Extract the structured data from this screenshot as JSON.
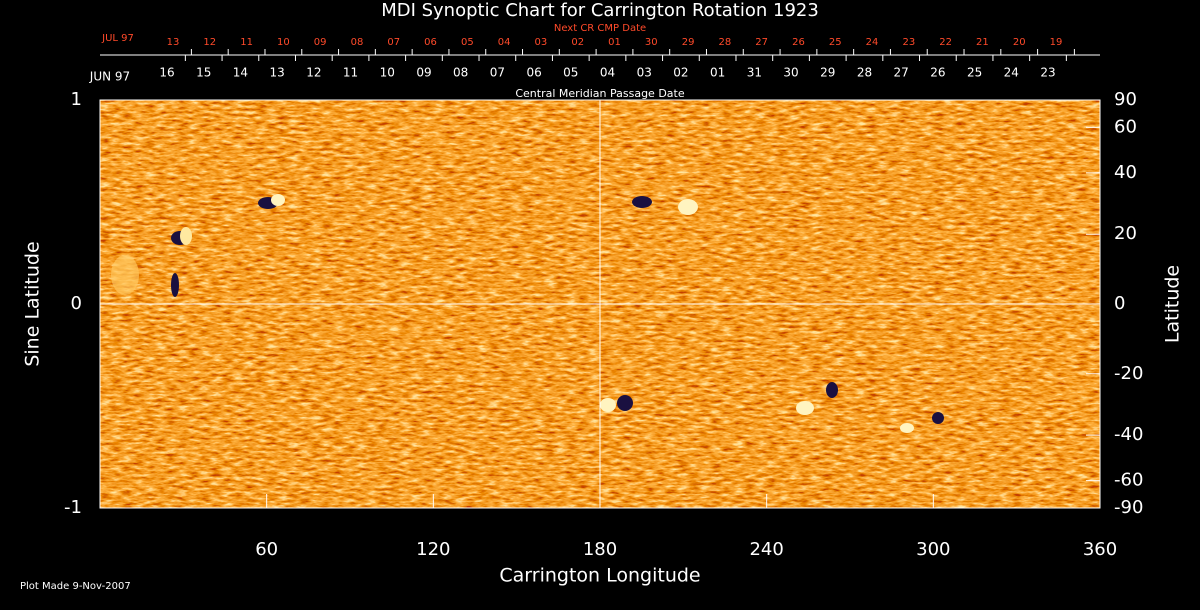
{
  "chart_data": {
    "type": "synoptic-map",
    "title": "MDI Synoptic Chart for Carrington Rotation 1923",
    "xlabel": "Carrington Longitude",
    "ylabel": "Sine Latitude",
    "y2label": "Latitude",
    "xlim": [
      0,
      360
    ],
    "xticks": [
      60,
      120,
      180,
      240,
      300,
      360
    ],
    "ylim": [
      -1,
      1
    ],
    "yticks": [
      -1,
      0,
      1
    ],
    "y2lim": [
      -90,
      90
    ],
    "y2scale": "sine",
    "y2ticks": [
      90,
      60,
      40,
      20,
      0,
      -20,
      -40,
      -60,
      -90
    ],
    "top_axis": {
      "label": "Central Meridian Passage Date",
      "start": "JUN 97",
      "categories": [
        "16",
        "15",
        "14",
        "13",
        "12",
        "11",
        "10",
        "09",
        "08",
        "07",
        "06",
        "05",
        "04",
        "03",
        "02",
        "01",
        "31",
        "30",
        "29",
        "28",
        "27",
        "26",
        "25",
        "24",
        "23"
      ]
    },
    "next_axis": {
      "label": "Next CR CMP Date",
      "start": "JUL 97",
      "categories": [
        "13",
        "12",
        "11",
        "10",
        "09",
        "08",
        "07",
        "06",
        "05",
        "04",
        "03",
        "02",
        "01",
        "30",
        "29",
        "28",
        "27",
        "26",
        "25",
        "24",
        "23",
        "22",
        "21",
        "20",
        "19"
      ]
    },
    "footnote": "Plot Made  9-Nov-2007"
  }
}
